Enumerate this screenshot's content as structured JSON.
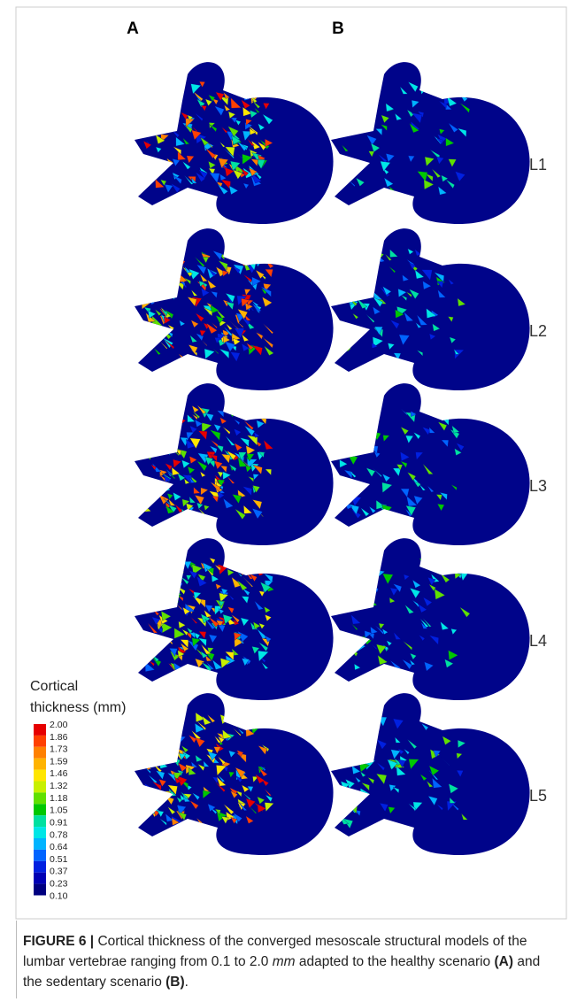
{
  "figure": {
    "columns": [
      "A",
      "B"
    ],
    "rows": [
      "L1",
      "L2",
      "L3",
      "L4",
      "L5"
    ],
    "colorbar": {
      "title_lines": [
        "Cortical",
        "thickness (mm)"
      ],
      "ticks": [
        "2.00",
        "1.86",
        "1.73",
        "1.59",
        "1.46",
        "1.32",
        "1.18",
        "1.05",
        "0.91",
        "0.78",
        "0.64",
        "0.51",
        "0.37",
        "0.23",
        "0.10"
      ],
      "colors": [
        "#e60000",
        "#ff4000",
        "#ff8000",
        "#ffb300",
        "#ffe600",
        "#c8f000",
        "#60e000",
        "#00c800",
        "#00e0a0",
        "#00e6e6",
        "#00b4ff",
        "#0064ff",
        "#0020e0",
        "#0000b4",
        "#000080"
      ]
    }
  },
  "caption": {
    "label": "FIGURE 6 |",
    "parts": [
      " Cortical thickness of the converged mesoscale structural models of the lumbar vertebrae ranging from 0.1 to 2.0 ",
      "mm",
      " adapted to the healthy scenario ",
      "(A)",
      " and the sedentary scenario ",
      "(B)",
      "."
    ]
  }
}
